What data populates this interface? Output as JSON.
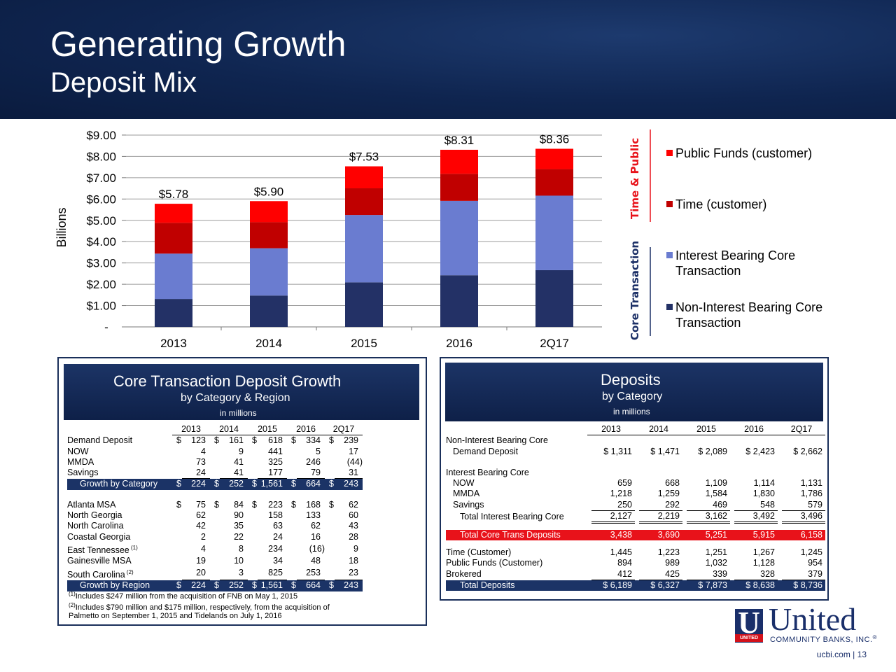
{
  "header": {
    "title": "Generating Growth",
    "subtitle": "Deposit Mix"
  },
  "chart_data": {
    "type": "bar",
    "stacked": true,
    "categories": [
      "2013",
      "2014",
      "2015",
      "2016",
      "2Q17"
    ],
    "ylabel": "Billions",
    "ylim": [
      0,
      9
    ],
    "yticks": [
      "-",
      "$1.00",
      "$2.00",
      "$3.00",
      "$4.00",
      "$5.00",
      "$6.00",
      "$7.00",
      "$8.00",
      "$9.00"
    ],
    "totals": [
      "$5.78",
      "$5.90",
      "$7.53",
      "$8.31",
      "$8.36"
    ],
    "series": [
      {
        "name": "Non-Interest Bearing Core Transaction",
        "color": "#233166",
        "values": [
          1.311,
          1.471,
          2.089,
          2.423,
          2.662
        ]
      },
      {
        "name": "Interest Bearing Core Transaction",
        "color": "#6a7cd0",
        "values": [
          2.127,
          2.219,
          3.162,
          3.492,
          3.496
        ]
      },
      {
        "name": "Time (customer)",
        "color": "#c00000",
        "values": [
          1.445,
          1.223,
          1.251,
          1.267,
          1.245
        ]
      },
      {
        "name": "Public Funds (customer)",
        "color": "#ff0000",
        "values": [
          0.894,
          0.989,
          1.032,
          1.128,
          0.954
        ]
      }
    ],
    "group_labels": [
      "Time & Public",
      "Core Transaction"
    ],
    "group_label_color_top": "#e8121a",
    "group_label_color_bottom": "#1b2f66",
    "legend_position": "right"
  },
  "legend": {
    "public": "Public Funds (customer)",
    "time": "Time (customer)",
    "ib_1": "Interest Bearing Core",
    "ib_2": "Transaction",
    "nib_1": "Non-Interest Bearing Core",
    "nib_2": "Transaction"
  },
  "left_panel": {
    "title": "Core Transaction Deposit Growth",
    "subtitle": "by Category & Region",
    "units": "in millions",
    "years": [
      "2013",
      "2014",
      "2015",
      "2016",
      "2Q17"
    ],
    "rows": [
      {
        "label": "Demand Deposit",
        "cur": "$",
        "v": [
          "123",
          "161",
          "618",
          "334",
          "239"
        ]
      },
      {
        "label": "NOW",
        "cur": "",
        "v": [
          "4",
          "9",
          "441",
          "5",
          "17"
        ]
      },
      {
        "label": "MMDA",
        "cur": "",
        "v": [
          "73",
          "41",
          "325",
          "246",
          "(44)"
        ]
      },
      {
        "label": "Savings",
        "cur": "",
        "v": [
          "24",
          "41",
          "177",
          "79",
          "31"
        ]
      },
      {
        "label": "Growth by Category",
        "cur": "$",
        "v": [
          "224",
          "252",
          "1,561",
          "664",
          "243"
        ]
      },
      {
        "label": "Atlanta MSA",
        "cur": "$",
        "v": [
          "75",
          "84",
          "223",
          "168",
          "62"
        ]
      },
      {
        "label": "North Georgia",
        "cur": "",
        "v": [
          "62",
          "90",
          "158",
          "133",
          "60"
        ]
      },
      {
        "label": "North Carolina",
        "cur": "",
        "v": [
          "42",
          "35",
          "63",
          "62",
          "43"
        ]
      },
      {
        "label": "Coastal Georgia",
        "cur": "",
        "v": [
          "2",
          "22",
          "24",
          "16",
          "28"
        ]
      },
      {
        "label": "East Tennessee",
        "sup": "(1)",
        "cur": "",
        "v": [
          "4",
          "8",
          "234",
          "(16)",
          "9"
        ]
      },
      {
        "label": "Gainesville MSA",
        "cur": "",
        "v": [
          "19",
          "10",
          "34",
          "48",
          "18"
        ]
      },
      {
        "label": "South Carolina",
        "sup": "(2)",
        "cur": "",
        "v": [
          "20",
          "3",
          "825",
          "253",
          "23"
        ]
      },
      {
        "label": "Growth by Region",
        "cur": "$",
        "v": [
          "224",
          "252",
          "1,561",
          "664",
          "243"
        ]
      }
    ],
    "footnote_1_mark": "(1)",
    "footnote_1": "Includes $247 million from the acquisition of FNB on May 1, 2015",
    "footnote_2_mark": "(2)",
    "footnote_2a": "Includes $790 million and $175 million, respectively, from the acquisition of",
    "footnote_2b": "Palmetto on September 1, 2015 and Tidelands on July 1, 2016"
  },
  "right_panel": {
    "title": "Deposits",
    "subtitle": "by Category",
    "units": "in millions",
    "years": [
      "2013",
      "2014",
      "2015",
      "2016",
      "2Q17"
    ],
    "section_nib": "Non-Interest Bearing Core",
    "section_ib": "Interest Bearing Core",
    "rows": [
      {
        "label": "Demand Deposit",
        "v": [
          "$ 1,311",
          "$ 1,471",
          "$ 2,089",
          "$ 2,423",
          "$ 2,662"
        ]
      },
      {
        "label": "NOW",
        "v": [
          "659",
          "668",
          "1,109",
          "1,114",
          "1,131"
        ]
      },
      {
        "label": "MMDA",
        "v": [
          "1,218",
          "1,259",
          "1,584",
          "1,830",
          "1,786"
        ]
      },
      {
        "label": "Savings",
        "v": [
          "250",
          "292",
          "469",
          "548",
          "579"
        ]
      },
      {
        "label": "Total Interest Bearing Core",
        "v": [
          "2,127",
          "2,219",
          "3,162",
          "3,492",
          "3,496"
        ]
      },
      {
        "label": "Total Core Trans Deposits",
        "v": [
          "3,438",
          "3,690",
          "5,251",
          "5,915",
          "6,158"
        ]
      },
      {
        "label": "Time (Customer)",
        "v": [
          "1,445",
          "1,223",
          "1,251",
          "1,267",
          "1,245"
        ]
      },
      {
        "label": "Public Funds (Customer)",
        "v": [
          "894",
          "989",
          "1,032",
          "1,128",
          "954"
        ]
      },
      {
        "label": "Brokered",
        "v": [
          "412",
          "425",
          "339",
          "328",
          "379"
        ]
      },
      {
        "label": "Total Deposits",
        "v": [
          "$ 6,189",
          "$ 6,327",
          "$ 7,873",
          "$ 8,638",
          "$ 8,736"
        ]
      }
    ]
  },
  "logo": {
    "mark": "U",
    "strip": "UNITED",
    "name": "United",
    "sub": "COMMUNITY BANKS, INC.",
    "reg": "®"
  },
  "footer": {
    "url": "ucbi.com",
    "sep": "|",
    "page": "13"
  }
}
